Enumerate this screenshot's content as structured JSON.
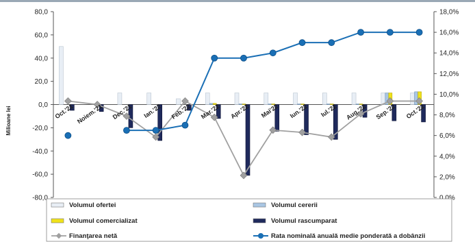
{
  "chart_data": {
    "type": "bar",
    "ylabel": "Milioane lei",
    "ylim": [
      -80,
      80
    ],
    "yticks": [
      "80,0",
      "60,0",
      "40,0",
      "20,0",
      "0,0",
      "-20,0",
      "-40,0",
      "-60,0",
      "-80,0"
    ],
    "y2lim": [
      0,
      18
    ],
    "y2ticks": [
      "18,0%",
      "16,0%",
      "14,0%",
      "12,0%",
      "10,0%",
      "8,0%",
      "6,0%",
      "4,0%",
      "2,0%",
      "0,0%"
    ],
    "categories": [
      "Oct.'21",
      "Noiem.'21",
      "Dec.'21",
      "Ian.'22",
      "Feb.'22",
      "Mar.'22",
      "Apr.'22",
      "Mai'22",
      "Iun.'22",
      "Iul.'22",
      "Aug.'22",
      "Sep.'22",
      "Oct.'22"
    ],
    "series": [
      {
        "name": "Volumul ofertei",
        "type": "bar",
        "axis": "left",
        "color": "#e8eef5",
        "values": [
          50,
          0,
          10,
          10,
          5,
          10,
          10,
          10,
          10,
          10,
          10,
          10,
          10
        ]
      },
      {
        "name": "Volumul cererii",
        "type": "bar",
        "axis": "left",
        "color": "#a9c6e3",
        "values": [
          0,
          0,
          0,
          0,
          0,
          1,
          0.5,
          0.5,
          0.5,
          0.5,
          0.5,
          10,
          11
        ]
      },
      {
        "name": "Volumul comercializat",
        "type": "bar",
        "axis": "left",
        "color": "#f0e21a",
        "values": [
          0,
          0,
          0,
          0,
          0,
          1,
          0.5,
          0.5,
          0.5,
          0.5,
          0.5,
          10,
          11
        ]
      },
      {
        "name": "Volumul rascumparat",
        "type": "bar",
        "axis": "left",
        "color": "#1f2a5c",
        "values": [
          -5,
          -6,
          -20,
          -31,
          -5,
          -12,
          -61,
          -23,
          -26,
          -30,
          -11,
          -14,
          -15
        ]
      },
      {
        "name": "Finanţarea netă",
        "type": "line",
        "axis": "left",
        "color": "#a0a0a0",
        "values": [
          3,
          0,
          -10,
          -28,
          3,
          -11,
          -61,
          -22,
          -24,
          -28,
          -8,
          3,
          3
        ]
      },
      {
        "name": "Rata nominală anuală medie ponderată a dobânzii",
        "type": "line",
        "axis": "right",
        "color": "#1a6fb5",
        "values": [
          6.0,
          null,
          6.5,
          6.5,
          7.0,
          13.5,
          13.5,
          14.0,
          15.0,
          15.0,
          16.0,
          16.0,
          16.0
        ]
      }
    ],
    "legend_position": "bottom",
    "grid": false
  }
}
